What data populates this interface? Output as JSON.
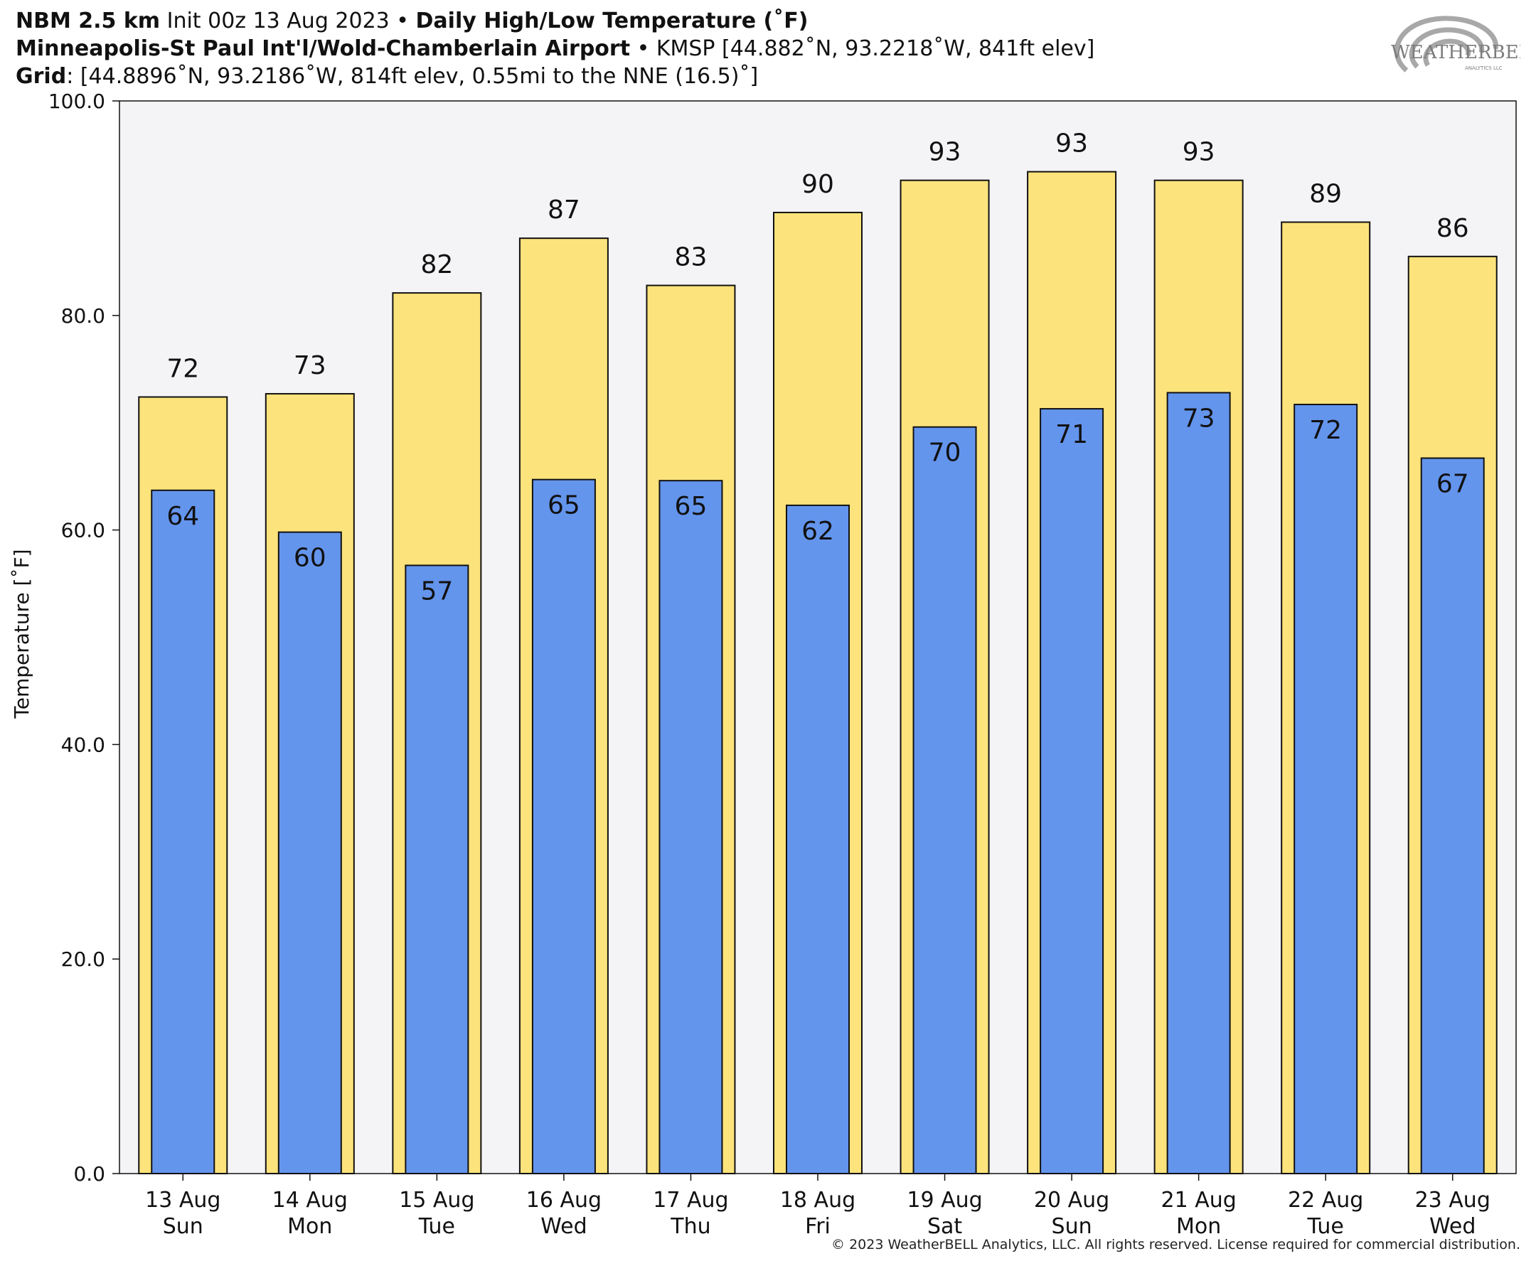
{
  "header": {
    "line1_bold_a": "NBM 2.5 km",
    "line1_a": " Init 00z 13 Aug 2023 • ",
    "line1_bold_b": "Daily High/Low Temperature (˚F)",
    "line2_bold": "Minneapolis-St Paul Int'l/Wold-Chamberlain Airport",
    "line2_rest": " • KMSP [44.882˚N, 93.2218˚W, 841ft elev]",
    "line3_bold": "Grid",
    "line3_rest": ": [44.8896˚N, 93.2186˚W, 814ft elev, 0.55mi to the NNE (16.5)˚]"
  },
  "logo": {
    "text": "WEATHERBELL",
    "subtext": "ANALYTICS LLC"
  },
  "copyright": "© 2023 WeatherBELL Analytics, LLC. All rights reserved. License required for commercial distribution.",
  "colors": {
    "high_bar": "#fce37c",
    "low_bar": "#6495ed",
    "plot_bg": "#f4f4f6",
    "edge": "#111111"
  },
  "chart_data": {
    "type": "bar",
    "ylabel": "Temperature [˚F]",
    "ylim": [
      0,
      100
    ],
    "yticks": [
      "0.0",
      "20.0",
      "40.0",
      "60.0",
      "80.0",
      "100.0"
    ],
    "categories": [
      [
        "13 Aug",
        "Sun"
      ],
      [
        "14 Aug",
        "Mon"
      ],
      [
        "15 Aug",
        "Tue"
      ],
      [
        "16 Aug",
        "Wed"
      ],
      [
        "17 Aug",
        "Thu"
      ],
      [
        "18 Aug",
        "Fri"
      ],
      [
        "19 Aug",
        "Sat"
      ],
      [
        "20 Aug",
        "Sun"
      ],
      [
        "21 Aug",
        "Mon"
      ],
      [
        "22 Aug",
        "Tue"
      ],
      [
        "23 Aug",
        "Wed"
      ]
    ],
    "series": [
      {
        "key": "high",
        "values": [
          72.4,
          72.7,
          82.1,
          87.2,
          82.8,
          89.6,
          92.6,
          93.4,
          92.6,
          88.7,
          85.5
        ],
        "labels": [
          "72",
          "73",
          "82",
          "87",
          "83",
          "90",
          "93",
          "93",
          "93",
          "89",
          "86"
        ]
      },
      {
        "key": "low",
        "values": [
          63.7,
          59.8,
          56.7,
          64.7,
          64.6,
          62.3,
          69.6,
          71.3,
          72.8,
          71.7,
          66.7
        ],
        "labels": [
          "64",
          "60",
          "57",
          "65",
          "65",
          "62",
          "70",
          "71",
          "73",
          "72",
          "67"
        ]
      }
    ],
    "grid": false,
    "legend": "none"
  }
}
